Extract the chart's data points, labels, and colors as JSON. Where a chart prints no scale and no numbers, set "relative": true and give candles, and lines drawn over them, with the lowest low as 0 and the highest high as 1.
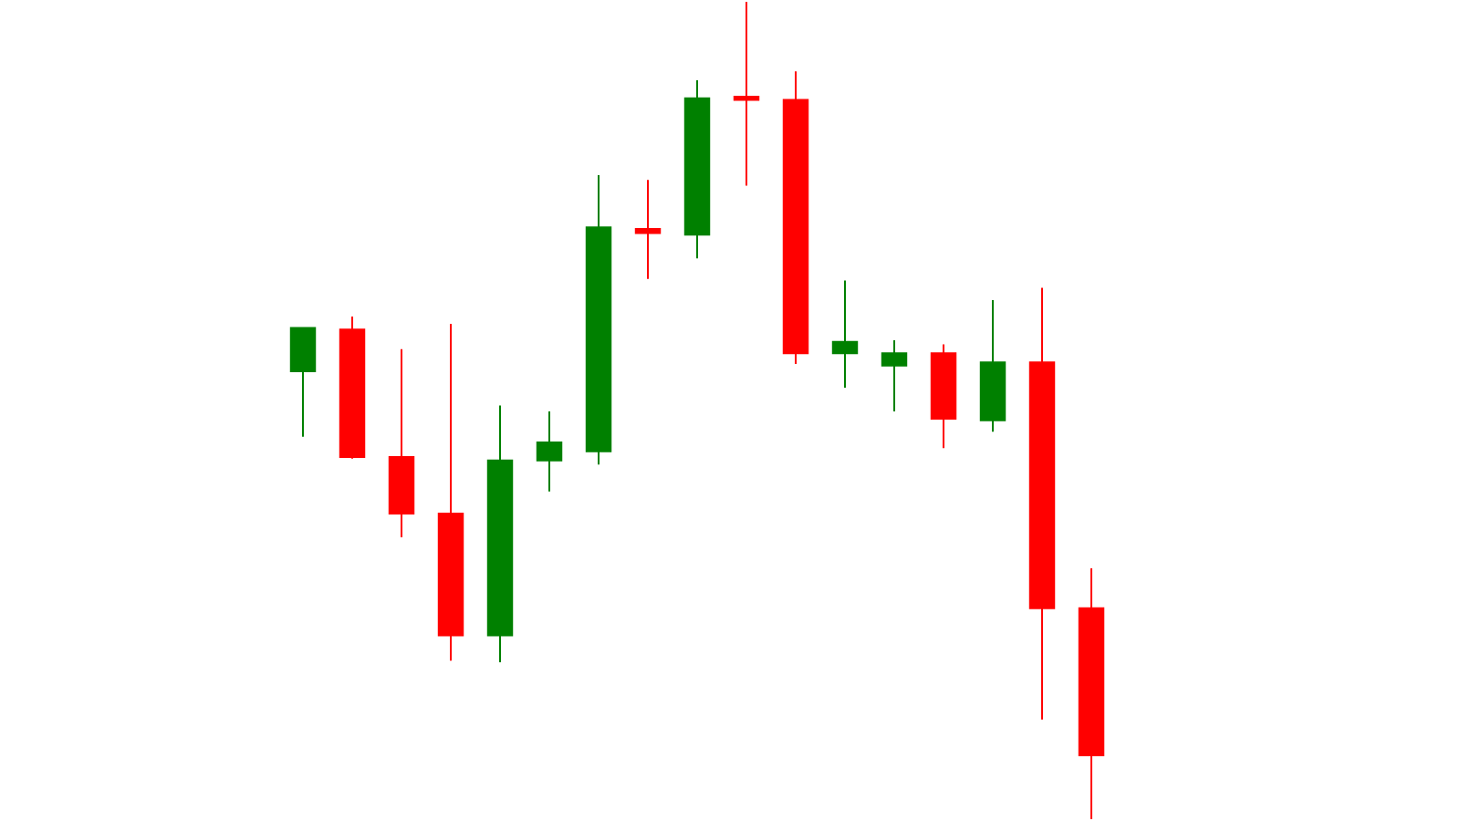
{
  "chart_data": {
    "type": "candlestick",
    "relative": true,
    "legend": false,
    "categories": [
      null,
      null,
      null,
      null,
      null,
      null,
      null,
      null,
      null,
      null,
      null,
      null,
      null,
      null,
      null,
      null,
      null
    ],
    "ohlc": [
      [
        0.548,
        0.601,
        0.468,
        0.601
      ],
      [
        0.599,
        0.615,
        0.441,
        0.443
      ],
      [
        0.443,
        0.575,
        0.345,
        0.374
      ],
      [
        0.374,
        0.606,
        0.194,
        0.225
      ],
      [
        0.225,
        0.506,
        0.192,
        0.439
      ],
      [
        0.439,
        0.499,
        0.401,
        0.461
      ],
      [
        0.45,
        0.788,
        0.434,
        0.724
      ],
      [
        0.722,
        0.782,
        0.661,
        0.717
      ],
      [
        0.715,
        0.904,
        0.686,
        0.882
      ],
      [
        0.884,
        1,
        0.775,
        0.88
      ],
      [
        0.88,
        0.915,
        0.557,
        0.57
      ],
      [
        0.57,
        0.659,
        0.528,
        0.584
      ],
      [
        0.555,
        0.586,
        0.499,
        0.57
      ],
      [
        0.57,
        0.581,
        0.454,
        0.49
      ],
      [
        0.488,
        0.635,
        0.474,
        0.559
      ],
      [
        0.559,
        0.65,
        0.122,
        0.258
      ],
      [
        0.258,
        0.307,
        0,
        0.078
      ]
    ],
    "colors": [
      "#008000",
      "#ff0000",
      "#ff0000",
      "#ff0000",
      "#008000",
      "#008000",
      "#008000",
      "#ff0000",
      "#008000",
      "#ff0000",
      "#ff0000",
      "#008000",
      "#008000",
      "#ff0000",
      "#008000",
      "#ff0000",
      "#ff0000"
    ]
  }
}
